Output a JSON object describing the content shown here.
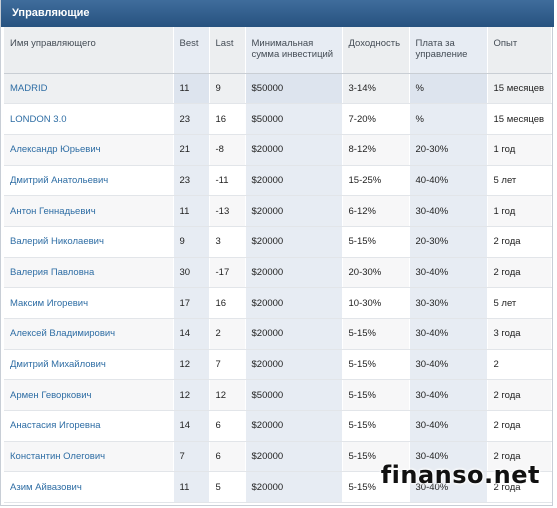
{
  "panel": {
    "title": "Управляющие"
  },
  "columns": {
    "name": "Имя управляющего",
    "best": "Best",
    "last": "Last",
    "min": "Минимальная сумма инвестиций",
    "yield": "Доходность",
    "fee": "Плата за управление",
    "exp": "Опыт"
  },
  "rows": [
    {
      "name": "MADRID",
      "best": "11",
      "last": "9",
      "min": "$50000",
      "yield": "3-14%",
      "fee": "%",
      "exp": "15 месяцев"
    },
    {
      "name": "LONDON 3.0",
      "best": "23",
      "last": "16",
      "min": "$50000",
      "yield": "7-20%",
      "fee": "%",
      "exp": "15 месяцев"
    },
    {
      "name": "Александр Юрьевич",
      "best": "21",
      "last": "-8",
      "min": "$20000",
      "yield": "8-12%",
      "fee": "20-30%",
      "exp": "1 год"
    },
    {
      "name": "Дмитрий Анатольевич",
      "best": "23",
      "last": "-11",
      "min": "$20000",
      "yield": "15-25%",
      "fee": "40-40%",
      "exp": "5 лет"
    },
    {
      "name": "Антон Геннадьевич",
      "best": "11",
      "last": "-13",
      "min": "$20000",
      "yield": "6-12%",
      "fee": "30-40%",
      "exp": "1 год"
    },
    {
      "name": "Валерий Николаевич",
      "best": "9",
      "last": "3",
      "min": "$20000",
      "yield": "5-15%",
      "fee": "20-30%",
      "exp": "2 года"
    },
    {
      "name": "Валерия Павловна",
      "best": "30",
      "last": "-17",
      "min": "$20000",
      "yield": "20-30%",
      "fee": "30-40%",
      "exp": "2 года"
    },
    {
      "name": "Максим Игоревич",
      "best": "17",
      "last": "16",
      "min": "$20000",
      "yield": "10-30%",
      "fee": "30-30%",
      "exp": "5 лет"
    },
    {
      "name": "Алексей Владимирович",
      "best": "14",
      "last": "2",
      "min": "$20000",
      "yield": "5-15%",
      "fee": "30-40%",
      "exp": "3 года"
    },
    {
      "name": "Дмитрий Михайлович",
      "best": "12",
      "last": "7",
      "min": "$20000",
      "yield": "5-15%",
      "fee": "30-40%",
      "exp": "2"
    },
    {
      "name": "Армен Геворкович",
      "best": "12",
      "last": "12",
      "min": "$50000",
      "yield": "5-15%",
      "fee": "30-40%",
      "exp": "2 года"
    },
    {
      "name": "Анастасия Игоревна",
      "best": "14",
      "last": "6",
      "min": "$20000",
      "yield": "5-15%",
      "fee": "30-40%",
      "exp": "2 года"
    },
    {
      "name": "Константин Олегович",
      "best": "7",
      "last": "6",
      "min": "$20000",
      "yield": "5-15%",
      "fee": "30-40%",
      "exp": "2 года"
    },
    {
      "name": "Азим Айвазович",
      "best": "11",
      "last": "5",
      "min": "$20000",
      "yield": "5-15%",
      "fee": "30-40%",
      "exp": "2 года"
    }
  ],
  "highlighted_row": 0,
  "watermark": "finanso.net"
}
